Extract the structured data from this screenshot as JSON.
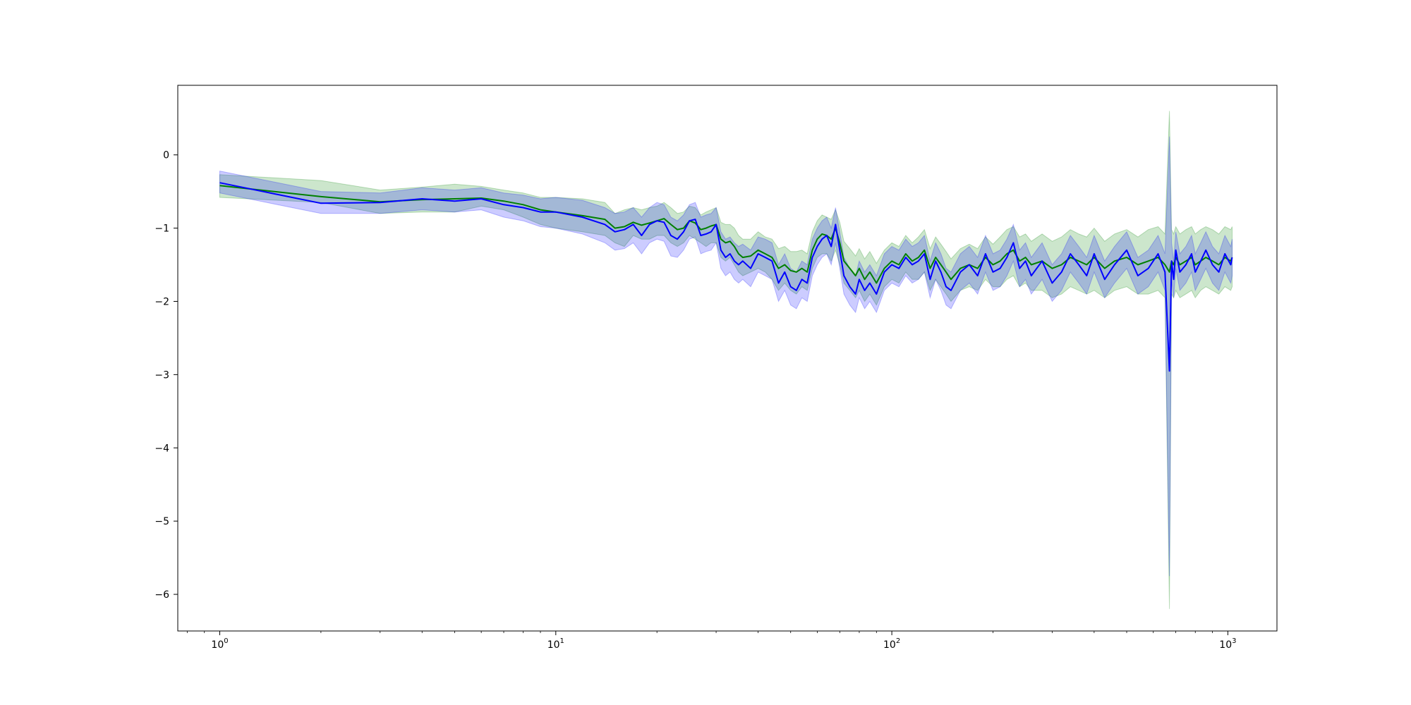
{
  "chart_data": {
    "type": "line",
    "title": "",
    "xlabel": "",
    "ylabel": "",
    "xscale": "log",
    "xlim": [
      0.75,
      1400
    ],
    "ylim": [
      -6.5,
      0.95
    ],
    "grid": false,
    "legend": "none",
    "x_ticks": [
      {
        "base": "10",
        "exp": "0",
        "value": 1
      },
      {
        "base": "10",
        "exp": "1",
        "value": 10
      },
      {
        "base": "10",
        "exp": "2",
        "value": 100
      },
      {
        "base": "10",
        "exp": "3",
        "value": 1000
      }
    ],
    "y_ticks": [
      {
        "label": "0",
        "value": 0
      },
      {
        "label": "−1",
        "value": -1
      },
      {
        "label": "−2",
        "value": -2
      },
      {
        "label": "−3",
        "value": -3
      },
      {
        "label": "−4",
        "value": -4
      },
      {
        "label": "−5",
        "value": -5
      },
      {
        "label": "−6",
        "value": -6
      }
    ],
    "series": [
      {
        "color": "#008000",
        "band_color": "#008000",
        "band_opacity": 0.2,
        "x": [
          1,
          2,
          3,
          4,
          5,
          6,
          7,
          8,
          9,
          10,
          12,
          14,
          15,
          16,
          17,
          18,
          19,
          20,
          21,
          22,
          23,
          24,
          25,
          26,
          27,
          28,
          29,
          30,
          31,
          32,
          33,
          34,
          35,
          36,
          38,
          40,
          42,
          44,
          46,
          48,
          50,
          52,
          54,
          56,
          58,
          60,
          62,
          64,
          66,
          68,
          70,
          72,
          75,
          78,
          80,
          83,
          86,
          90,
          95,
          100,
          105,
          110,
          115,
          120,
          125,
          130,
          135,
          140,
          145,
          150,
          160,
          170,
          180,
          190,
          200,
          210,
          220,
          230,
          240,
          250,
          260,
          280,
          300,
          320,
          340,
          360,
          380,
          400,
          430,
          460,
          500,
          540,
          580,
          620,
          650,
          670,
          680,
          690,
          700,
          720,
          750,
          780,
          800,
          830,
          860,
          900,
          940,
          980,
          1020,
          1030
        ],
        "mean": [
          -0.42,
          -0.57,
          -0.64,
          -0.61,
          -0.6,
          -0.59,
          -0.63,
          -0.68,
          -0.75,
          -0.78,
          -0.83,
          -0.88,
          -1.0,
          -0.98,
          -0.92,
          -0.96,
          -0.93,
          -0.9,
          -0.87,
          -0.95,
          -1.02,
          -1.0,
          -0.9,
          -0.93,
          -1.02,
          -1.0,
          -0.97,
          -0.95,
          -1.15,
          -1.2,
          -1.18,
          -1.25,
          -1.35,
          -1.4,
          -1.38,
          -1.3,
          -1.35,
          -1.4,
          -1.55,
          -1.5,
          -1.58,
          -1.6,
          -1.55,
          -1.6,
          -1.3,
          -1.15,
          -1.08,
          -1.1,
          -1.15,
          -1.0,
          -1.2,
          -1.45,
          -1.55,
          -1.65,
          -1.55,
          -1.7,
          -1.6,
          -1.75,
          -1.55,
          -1.45,
          -1.5,
          -1.35,
          -1.45,
          -1.4,
          -1.3,
          -1.55,
          -1.4,
          -1.5,
          -1.6,
          -1.7,
          -1.55,
          -1.5,
          -1.55,
          -1.4,
          -1.5,
          -1.45,
          -1.35,
          -1.3,
          -1.45,
          -1.4,
          -1.5,
          -1.45,
          -1.55,
          -1.5,
          -1.4,
          -1.45,
          -1.5,
          -1.4,
          -1.55,
          -1.45,
          -1.4,
          -1.5,
          -1.45,
          -1.4,
          -1.5,
          -1.6,
          -1.45,
          -1.5,
          -1.4,
          -1.5,
          -1.45,
          -1.4,
          -1.5,
          -1.45,
          -1.4,
          -1.45,
          -1.5,
          -1.4,
          -1.45,
          -1.4
        ],
        "lower": [
          -0.58,
          -0.65,
          -0.8,
          -0.78,
          -0.78,
          -0.7,
          -0.75,
          -0.85,
          -0.95,
          -1.0,
          -1.05,
          -1.1,
          -1.2,
          -1.25,
          -1.1,
          -1.15,
          -1.15,
          -1.1,
          -1.1,
          -1.2,
          -1.25,
          -1.2,
          -1.1,
          -1.15,
          -1.2,
          -1.25,
          -1.2,
          -1.2,
          -1.4,
          -1.45,
          -1.4,
          -1.5,
          -1.6,
          -1.65,
          -1.6,
          -1.55,
          -1.6,
          -1.7,
          -1.85,
          -1.75,
          -1.85,
          -1.9,
          -1.8,
          -1.85,
          -1.55,
          -1.4,
          -1.35,
          -1.35,
          -1.45,
          -1.3,
          -1.5,
          -1.75,
          -1.85,
          -1.95,
          -1.85,
          -2.0,
          -1.9,
          -2.05,
          -1.8,
          -1.7,
          -1.75,
          -1.6,
          -1.7,
          -1.7,
          -1.6,
          -1.85,
          -1.7,
          -1.8,
          -1.9,
          -2.0,
          -1.85,
          -1.8,
          -1.85,
          -1.7,
          -1.8,
          -1.8,
          -1.7,
          -1.65,
          -1.8,
          -1.75,
          -1.85,
          -1.85,
          -1.95,
          -1.9,
          -1.8,
          -1.85,
          -1.9,
          -1.85,
          -1.95,
          -1.85,
          -1.8,
          -1.9,
          -1.9,
          -1.85,
          -1.95,
          -6.2,
          -1.9,
          -1.95,
          -1.85,
          -1.95,
          -1.9,
          -1.85,
          -1.95,
          -1.85,
          -1.8,
          -1.85,
          -1.9,
          -1.8,
          -1.85,
          -1.8
        ],
        "upper": [
          -0.27,
          -0.35,
          -0.48,
          -0.44,
          -0.4,
          -0.43,
          -0.48,
          -0.52,
          -0.58,
          -0.58,
          -0.6,
          -0.65,
          -0.8,
          -0.75,
          -0.72,
          -0.75,
          -0.72,
          -0.7,
          -0.65,
          -0.72,
          -0.8,
          -0.78,
          -0.7,
          -0.72,
          -0.82,
          -0.78,
          -0.75,
          -0.72,
          -0.92,
          -0.95,
          -0.95,
          -1.0,
          -1.1,
          -1.15,
          -1.15,
          -1.05,
          -1.12,
          -1.15,
          -1.28,
          -1.25,
          -1.32,
          -1.32,
          -1.3,
          -1.35,
          -1.05,
          -0.9,
          -0.82,
          -0.85,
          -0.88,
          -0.75,
          -0.92,
          -1.18,
          -1.28,
          -1.38,
          -1.28,
          -1.42,
          -1.32,
          -1.48,
          -1.3,
          -1.2,
          -1.25,
          -1.1,
          -1.2,
          -1.12,
          -1.02,
          -1.28,
          -1.12,
          -1.22,
          -1.32,
          -1.42,
          -1.28,
          -1.22,
          -1.28,
          -1.12,
          -1.22,
          -1.12,
          -1.02,
          -0.98,
          -1.12,
          -1.08,
          -1.18,
          -1.08,
          -1.18,
          -1.12,
          -1.02,
          -1.08,
          -1.12,
          -1.0,
          -1.18,
          -1.08,
          -1.02,
          -1.12,
          -1.02,
          -0.98,
          -1.08,
          0.6,
          -1.02,
          -1.08,
          -0.98,
          -1.08,
          -1.02,
          -0.98,
          -1.08,
          -1.02,
          -0.98,
          -1.02,
          -1.08,
          -0.98,
          -1.02,
          -0.98
        ]
      },
      {
        "color": "#0000ff",
        "band_color": "#0000ff",
        "band_opacity": 0.2,
        "x": [
          1,
          2,
          3,
          4,
          5,
          6,
          7,
          8,
          9,
          10,
          12,
          14,
          15,
          16,
          17,
          18,
          19,
          20,
          21,
          22,
          23,
          24,
          25,
          26,
          27,
          28,
          29,
          30,
          31,
          32,
          33,
          34,
          35,
          36,
          38,
          40,
          42,
          44,
          46,
          48,
          50,
          52,
          54,
          56,
          58,
          60,
          62,
          64,
          66,
          68,
          70,
          72,
          75,
          78,
          80,
          83,
          86,
          90,
          95,
          100,
          105,
          110,
          115,
          120,
          125,
          130,
          135,
          140,
          145,
          150,
          160,
          170,
          180,
          190,
          200,
          210,
          220,
          230,
          240,
          250,
          260,
          280,
          300,
          320,
          340,
          360,
          380,
          400,
          430,
          460,
          500,
          540,
          580,
          620,
          650,
          670,
          680,
          690,
          700,
          720,
          750,
          780,
          800,
          830,
          860,
          900,
          940,
          980,
          1020,
          1030
        ],
        "mean": [
          -0.38,
          -0.66,
          -0.65,
          -0.6,
          -0.63,
          -0.6,
          -0.68,
          -0.72,
          -0.78,
          -0.78,
          -0.85,
          -0.95,
          -1.05,
          -1.02,
          -0.95,
          -1.1,
          -0.95,
          -0.9,
          -0.92,
          -1.1,
          -1.15,
          -1.05,
          -0.9,
          -0.88,
          -1.1,
          -1.08,
          -1.05,
          -0.95,
          -1.3,
          -1.4,
          -1.35,
          -1.45,
          -1.5,
          -1.45,
          -1.55,
          -1.35,
          -1.4,
          -1.45,
          -1.75,
          -1.6,
          -1.8,
          -1.85,
          -1.7,
          -1.75,
          -1.4,
          -1.25,
          -1.15,
          -1.1,
          -1.25,
          -0.95,
          -1.3,
          -1.65,
          -1.8,
          -1.9,
          -1.7,
          -1.85,
          -1.75,
          -1.9,
          -1.6,
          -1.5,
          -1.55,
          -1.4,
          -1.5,
          -1.45,
          -1.35,
          -1.7,
          -1.45,
          -1.6,
          -1.8,
          -1.85,
          -1.6,
          -1.5,
          -1.65,
          -1.35,
          -1.6,
          -1.55,
          -1.4,
          -1.2,
          -1.55,
          -1.45,
          -1.65,
          -1.45,
          -1.75,
          -1.6,
          -1.35,
          -1.5,
          -1.65,
          -1.35,
          -1.7,
          -1.5,
          -1.3,
          -1.65,
          -1.55,
          -1.35,
          -1.6,
          -2.95,
          -1.45,
          -1.7,
          -1.3,
          -1.6,
          -1.5,
          -1.35,
          -1.6,
          -1.45,
          -1.3,
          -1.5,
          -1.6,
          -1.35,
          -1.5,
          -1.4
        ],
        "lower": [
          -0.52,
          -0.8,
          -0.8,
          -0.75,
          -0.78,
          -0.75,
          -0.85,
          -0.9,
          -0.98,
          -1.0,
          -1.08,
          -1.2,
          -1.3,
          -1.28,
          -1.2,
          -1.35,
          -1.2,
          -1.15,
          -1.18,
          -1.38,
          -1.4,
          -1.3,
          -1.15,
          -1.12,
          -1.35,
          -1.32,
          -1.3,
          -1.2,
          -1.55,
          -1.65,
          -1.6,
          -1.7,
          -1.75,
          -1.7,
          -1.8,
          -1.6,
          -1.65,
          -1.7,
          -2.0,
          -1.85,
          -2.05,
          -2.1,
          -1.95,
          -2.0,
          -1.65,
          -1.5,
          -1.4,
          -1.35,
          -1.5,
          -1.2,
          -1.55,
          -1.9,
          -2.05,
          -2.15,
          -1.95,
          -2.1,
          -2.0,
          -2.15,
          -1.85,
          -1.75,
          -1.8,
          -1.65,
          -1.75,
          -1.7,
          -1.6,
          -1.95,
          -1.7,
          -1.85,
          -2.05,
          -2.1,
          -1.85,
          -1.75,
          -1.9,
          -1.6,
          -1.85,
          -1.8,
          -1.65,
          -1.45,
          -1.8,
          -1.7,
          -1.9,
          -1.7,
          -2.0,
          -1.85,
          -1.6,
          -1.75,
          -1.9,
          -1.6,
          -1.95,
          -1.75,
          -1.55,
          -1.9,
          -1.8,
          -1.6,
          -1.85,
          -5.75,
          -1.7,
          -1.95,
          -1.55,
          -1.85,
          -1.75,
          -1.6,
          -1.85,
          -1.7,
          -1.55,
          -1.75,
          -1.85,
          -1.6,
          -1.75,
          -1.65
        ],
        "upper": [
          -0.22,
          -0.5,
          -0.52,
          -0.45,
          -0.48,
          -0.45,
          -0.52,
          -0.55,
          -0.6,
          -0.58,
          -0.62,
          -0.72,
          -0.8,
          -0.78,
          -0.72,
          -0.85,
          -0.72,
          -0.65,
          -0.68,
          -0.85,
          -0.9,
          -0.82,
          -0.68,
          -0.65,
          -0.85,
          -0.82,
          -0.8,
          -0.72,
          -1.05,
          -1.15,
          -1.12,
          -1.2,
          -1.25,
          -1.22,
          -1.3,
          -1.12,
          -1.15,
          -1.2,
          -1.5,
          -1.35,
          -1.55,
          -1.6,
          -1.45,
          -1.5,
          -1.15,
          -1.0,
          -0.9,
          -0.85,
          -1.0,
          -0.72,
          -1.05,
          -1.4,
          -1.55,
          -1.65,
          -1.45,
          -1.6,
          -1.5,
          -1.65,
          -1.35,
          -1.25,
          -1.3,
          -1.15,
          -1.25,
          -1.2,
          -1.1,
          -1.45,
          -1.2,
          -1.35,
          -1.55,
          -1.6,
          -1.35,
          -1.25,
          -1.4,
          -1.1,
          -1.35,
          -1.3,
          -1.15,
          -0.95,
          -1.3,
          -1.2,
          -1.4,
          -1.2,
          -1.5,
          -1.35,
          -1.1,
          -1.25,
          -1.4,
          -1.1,
          -1.45,
          -1.25,
          -1.05,
          -1.4,
          -1.3,
          -1.1,
          -1.35,
          0.25,
          -1.2,
          -1.45,
          -1.05,
          -1.35,
          -1.25,
          -1.1,
          -1.35,
          -1.2,
          -1.05,
          -1.25,
          -1.35,
          -1.1,
          -1.25,
          -1.15
        ]
      }
    ]
  }
}
